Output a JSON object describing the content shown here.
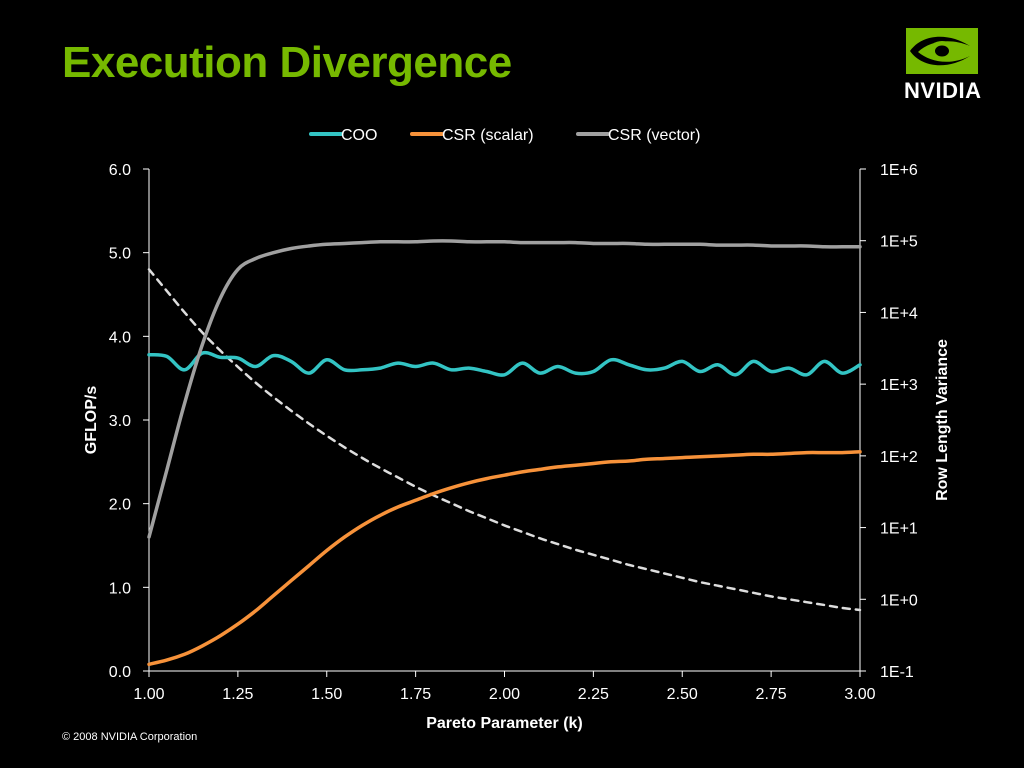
{
  "slide": {
    "title": "Execution Divergence",
    "logo_text": "NVIDIA",
    "copyright": "© 2008 NVIDIA Corporation",
    "title_color": "#76b900"
  },
  "chart_data": {
    "type": "line",
    "xlabel": "Pareto Parameter (k)",
    "ylabel": "GFLOP/s",
    "y2label": "Row Length Variance",
    "xlim": [
      1.0,
      3.0
    ],
    "ylim": [
      0.0,
      6.0
    ],
    "y2lim_log10": [
      -1,
      6
    ],
    "x_ticks": [
      "1.00",
      "1.25",
      "1.50",
      "1.75",
      "2.00",
      "2.25",
      "2.50",
      "2.75",
      "3.00"
    ],
    "y_ticks": [
      "0.0",
      "1.0",
      "2.0",
      "3.0",
      "4.0",
      "5.0",
      "6.0"
    ],
    "y2_ticks": [
      "1E-1",
      "1E+0",
      "1E+1",
      "1E+2",
      "1E+3",
      "1E+4",
      "1E+5",
      "1E+6"
    ],
    "grid": false,
    "legend_position": "top-center",
    "x": [
      1.0,
      1.05,
      1.1,
      1.15,
      1.2,
      1.25,
      1.3,
      1.35,
      1.4,
      1.45,
      1.5,
      1.55,
      1.6,
      1.65,
      1.7,
      1.75,
      1.8,
      1.85,
      1.9,
      1.95,
      2.0,
      2.05,
      2.1,
      2.15,
      2.2,
      2.25,
      2.3,
      2.35,
      2.4,
      2.45,
      2.5,
      2.55,
      2.6,
      2.65,
      2.7,
      2.75,
      2.8,
      2.85,
      2.9,
      2.95,
      3.0
    ],
    "series": [
      {
        "name": "COO",
        "color": "#33c4c4",
        "axis": "left",
        "style": "solid",
        "values": [
          3.78,
          3.76,
          3.6,
          3.8,
          3.75,
          3.74,
          3.64,
          3.77,
          3.7,
          3.56,
          3.72,
          3.6,
          3.6,
          3.62,
          3.68,
          3.64,
          3.68,
          3.6,
          3.62,
          3.58,
          3.54,
          3.68,
          3.56,
          3.64,
          3.56,
          3.58,
          3.72,
          3.66,
          3.6,
          3.62,
          3.7,
          3.58,
          3.66,
          3.54,
          3.7,
          3.58,
          3.62,
          3.54,
          3.7,
          3.56,
          3.66
        ]
      },
      {
        "name": "CSR (scalar)",
        "color": "#f7923a",
        "axis": "left",
        "style": "solid",
        "values": [
          0.08,
          0.13,
          0.2,
          0.3,
          0.42,
          0.56,
          0.72,
          0.9,
          1.08,
          1.26,
          1.44,
          1.6,
          1.74,
          1.86,
          1.96,
          2.04,
          2.12,
          2.19,
          2.25,
          2.3,
          2.34,
          2.38,
          2.41,
          2.44,
          2.46,
          2.48,
          2.5,
          2.51,
          2.53,
          2.54,
          2.55,
          2.56,
          2.57,
          2.58,
          2.59,
          2.59,
          2.6,
          2.61,
          2.61,
          2.61,
          2.62
        ]
      },
      {
        "name": "CSR (vector)",
        "color": "#a0a0a0",
        "axis": "left",
        "style": "solid",
        "values": [
          1.6,
          2.4,
          3.2,
          3.9,
          4.45,
          4.8,
          4.93,
          5.0,
          5.05,
          5.08,
          5.1,
          5.11,
          5.12,
          5.13,
          5.13,
          5.13,
          5.14,
          5.14,
          5.13,
          5.13,
          5.13,
          5.12,
          5.12,
          5.12,
          5.12,
          5.11,
          5.11,
          5.11,
          5.1,
          5.1,
          5.1,
          5.1,
          5.09,
          5.09,
          5.09,
          5.08,
          5.08,
          5.08,
          5.07,
          5.07,
          5.07
        ]
      },
      {
        "name": "",
        "color": "#dddddd",
        "axis": "right",
        "style": "dashed",
        "values_log10": [
          4.6,
          4.3,
          4.0,
          3.72,
          3.47,
          3.24,
          3.02,
          2.82,
          2.63,
          2.45,
          2.28,
          2.12,
          1.97,
          1.83,
          1.7,
          1.57,
          1.45,
          1.34,
          1.23,
          1.13,
          1.03,
          0.94,
          0.85,
          0.77,
          0.69,
          0.62,
          0.55,
          0.48,
          0.42,
          0.36,
          0.3,
          0.24,
          0.19,
          0.14,
          0.09,
          0.04,
          0.0,
          -0.04,
          -0.08,
          -0.12,
          -0.15
        ]
      }
    ]
  }
}
